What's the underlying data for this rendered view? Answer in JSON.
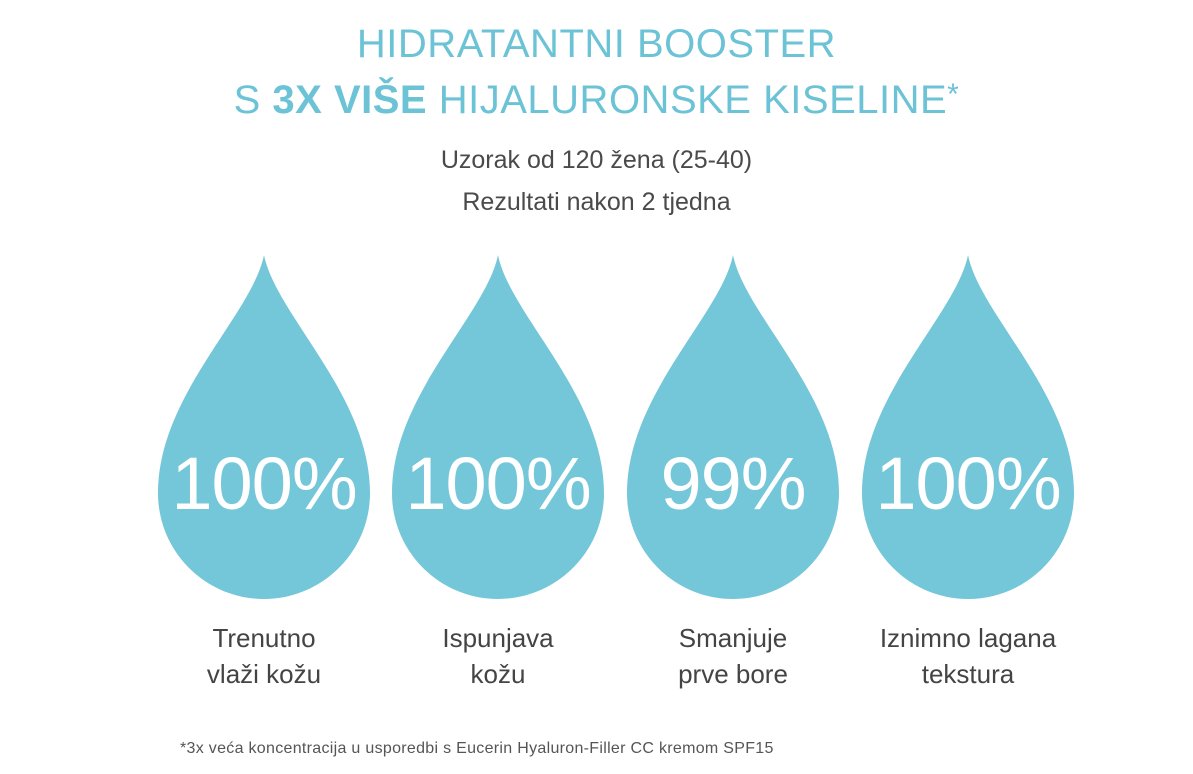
{
  "headline": {
    "line1": "HIDRATANTNI BOOSTER",
    "line2_prefix": "S ",
    "line2_bold": "3X VIŠE",
    "line2_suffix": " HIJALURONSKE KISELINE",
    "asterisk": "*"
  },
  "subtitle": {
    "line1": "Uzorak od 120 žena (25-40)",
    "line2": "Rezultati nakon 2 tjedna"
  },
  "colors": {
    "accent": "#6cc3d6",
    "drop": "#74c6d9"
  },
  "stats": [
    {
      "value": "100%",
      "caption_line1": "Trenutno",
      "caption_line2": "vlaži kožu"
    },
    {
      "value": "100%",
      "caption_line1": "Ispunjava",
      "caption_line2": "kožu"
    },
    {
      "value": "99%",
      "caption_line1": "Smanjuje",
      "caption_line2": "prve bore"
    },
    {
      "value": "100%",
      "caption_line1": "Iznimno lagana",
      "caption_line2": "tekstura"
    }
  ],
  "footnote": "*3x veća koncentracija u usporedbi s Eucerin Hyaluron-Filler CC kremom SPF15"
}
